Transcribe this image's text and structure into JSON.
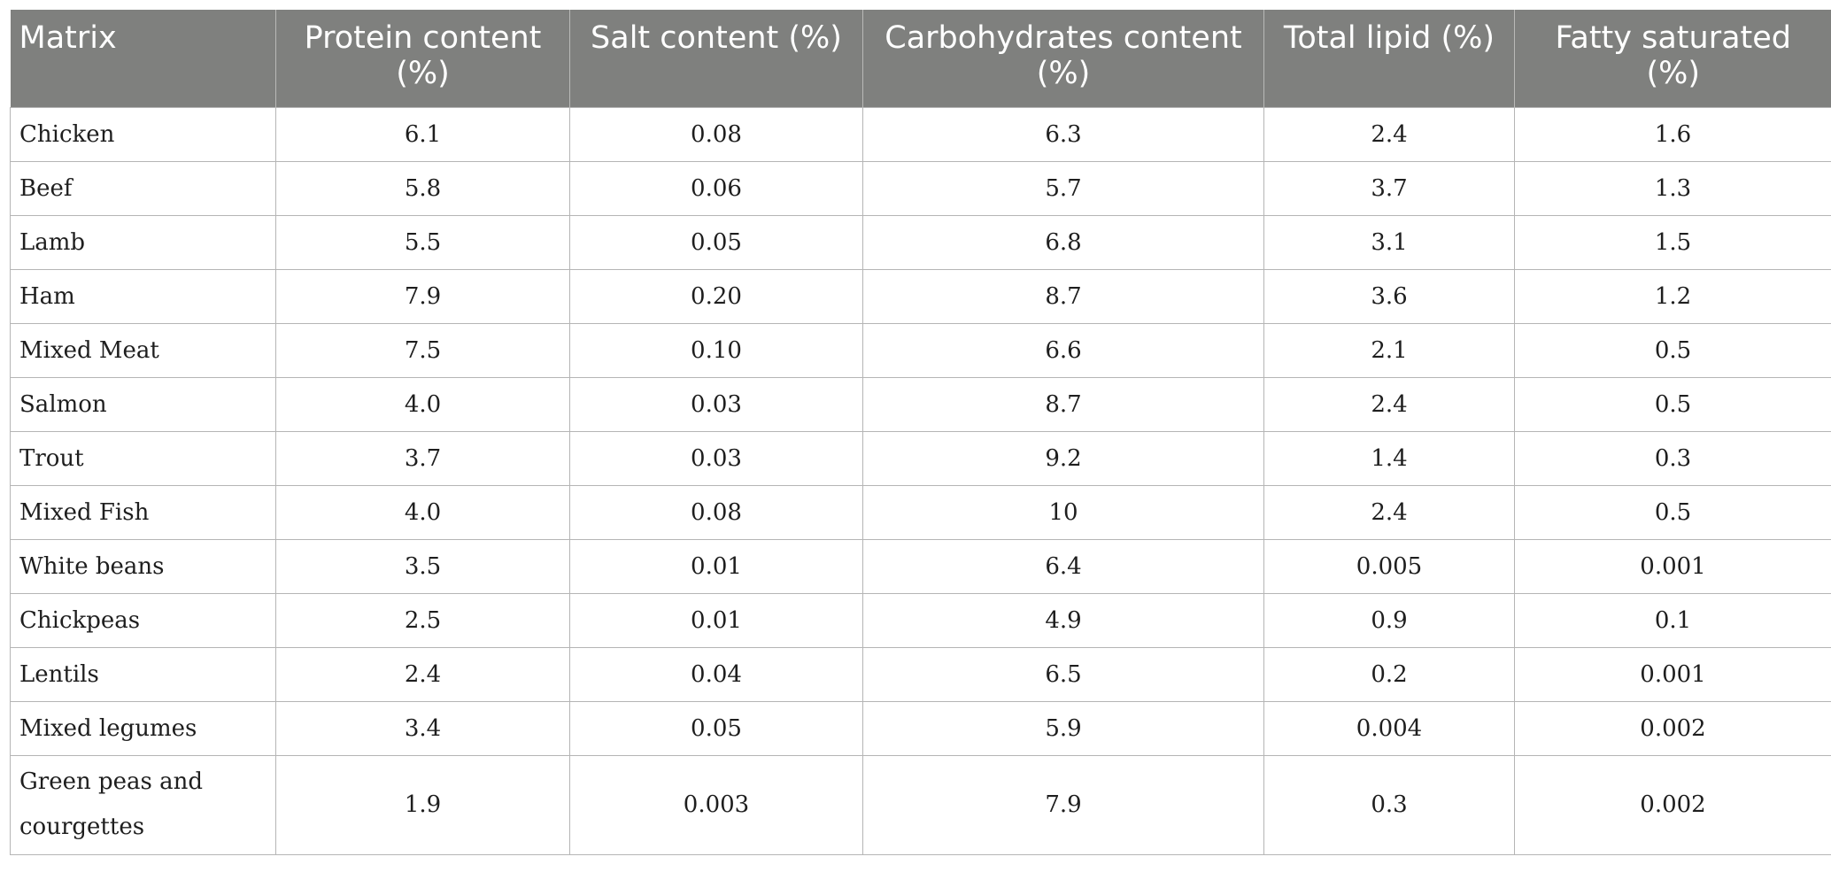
{
  "table": {
    "headers": [
      "Matrix",
      "Protein content (%)",
      "Salt content (%)",
      "Carbohydrates content (%)",
      "Total lipid (%)",
      "Fatty saturated (%)"
    ],
    "rows": [
      [
        "Chicken",
        "6.1",
        "0.08",
        "6.3",
        "2.4",
        "1.6"
      ],
      [
        "Beef",
        "5.8",
        "0.06",
        "5.7",
        "3.7",
        "1.3"
      ],
      [
        "Lamb",
        "5.5",
        "0.05",
        "6.8",
        "3.1",
        "1.5"
      ],
      [
        "Ham",
        "7.9",
        "0.20",
        "8.7",
        "3.6",
        "1.2"
      ],
      [
        "Mixed Meat",
        "7.5",
        "0.10",
        "6.6",
        "2.1",
        "0.5"
      ],
      [
        "Salmon",
        "4.0",
        "0.03",
        "8.7",
        "2.4",
        "0.5"
      ],
      [
        "Trout",
        "3.7",
        "0.03",
        "9.2",
        "1.4",
        "0.3"
      ],
      [
        "Mixed Fish",
        "4.0",
        "0.08",
        "10",
        "2.4",
        "0.5"
      ],
      [
        "White beans",
        "3.5",
        "0.01",
        "6.4",
        "0.005",
        "0.001"
      ],
      [
        "Chickpeas",
        "2.5",
        "0.01",
        "4.9",
        "0.9",
        "0.1"
      ],
      [
        "Lentils",
        "2.4",
        "0.04",
        "6.5",
        "0.2",
        "0.001"
      ],
      [
        "Mixed legumes",
        "3.4",
        "0.05",
        "5.9",
        "0.004",
        "0.002"
      ],
      [
        "Green peas and courgettes",
        "1.9",
        "0.003",
        "7.9",
        "0.3",
        "0.002"
      ]
    ]
  },
  "colors": {
    "header_bg": "#7f807e",
    "header_text": "#ffffff",
    "grid": "#b5b5b5"
  }
}
